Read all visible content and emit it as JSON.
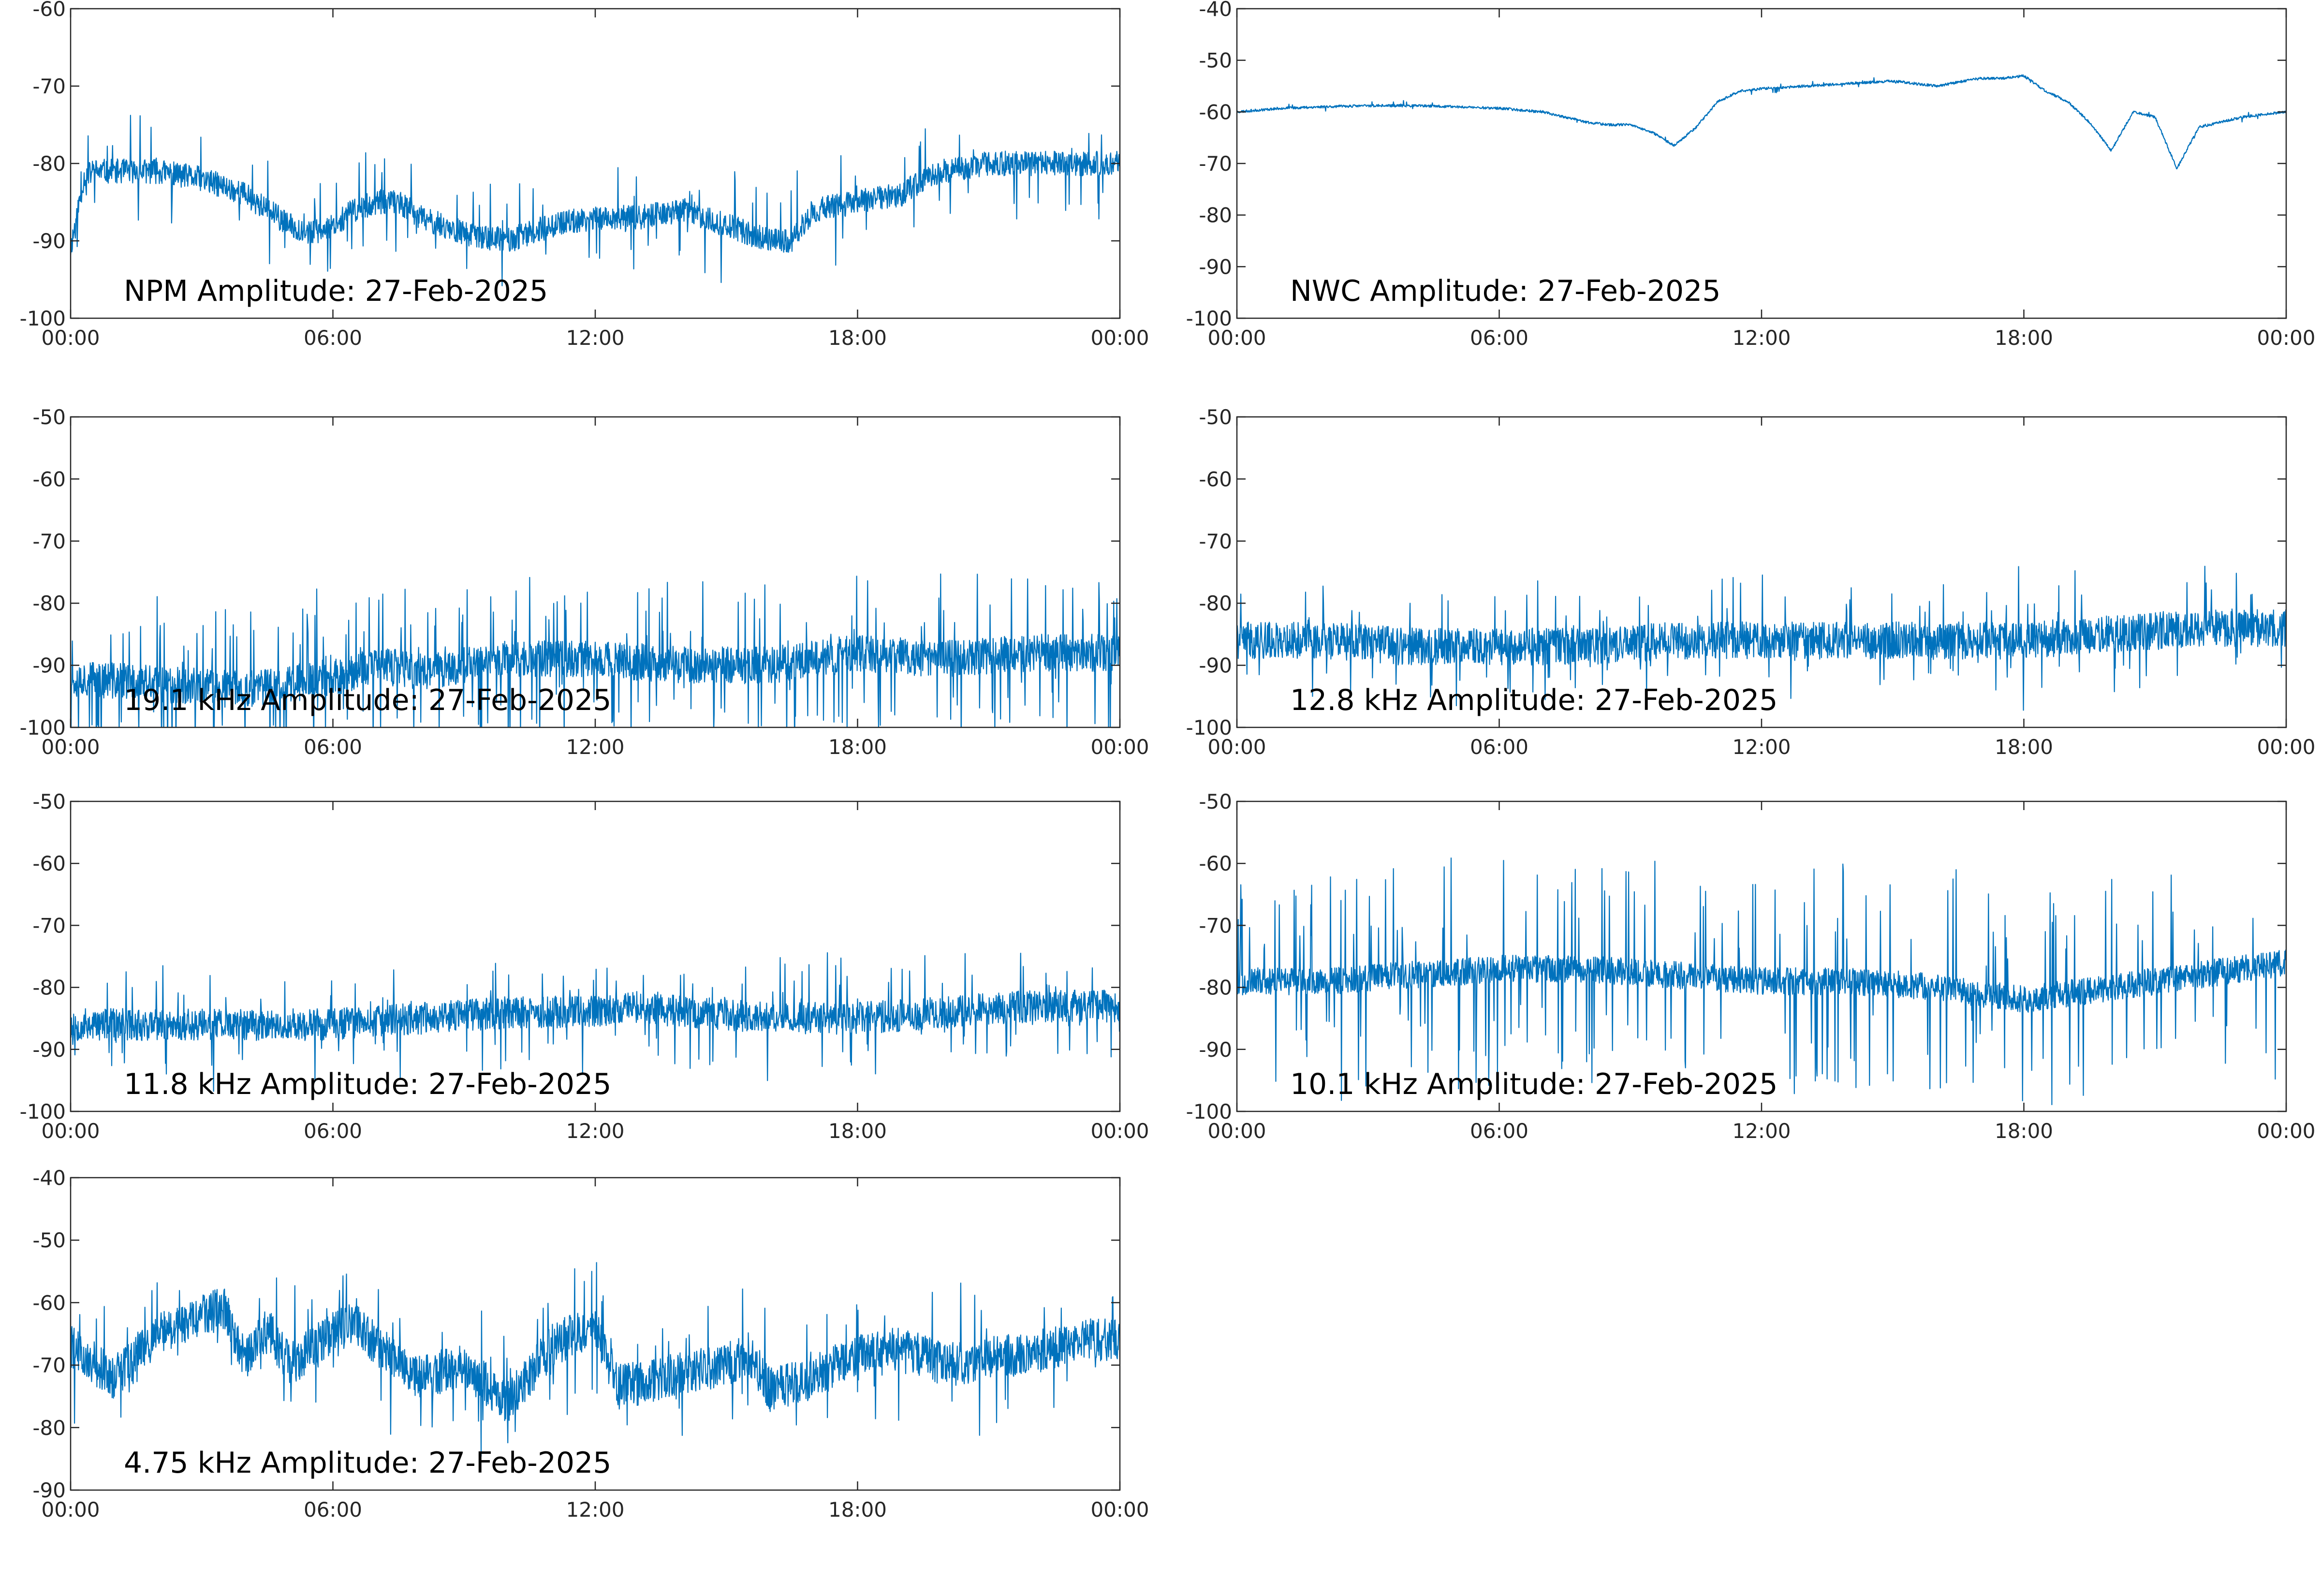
{
  "colors": {
    "series": "#0072bd",
    "axes": "#262626",
    "background": "#ffffff"
  },
  "chart_data": [
    {
      "type": "line",
      "title": "NPM Amplitude: 27-Feb-2025",
      "xlabel": "",
      "ylabel": "",
      "xlim": [
        0,
        24
      ],
      "ylim": [
        -100,
        -60
      ],
      "xtick_labels": [
        "00:00",
        "06:00",
        "12:00",
        "18:00",
        "00:00"
      ],
      "ytick_labels": [
        "-100",
        "-90",
        "-80",
        "-70",
        "-60"
      ],
      "grid": false,
      "series": [
        {
          "x": [
            0,
            0.3,
            0.5,
            1,
            2,
            3,
            4,
            5,
            5.5,
            6,
            6.5,
            7,
            7.5,
            8,
            9,
            10,
            11,
            12,
            13,
            14,
            15,
            16,
            16.5,
            17,
            18,
            19,
            19.5,
            20,
            21,
            22,
            23,
            24
          ],
          "y": [
            -91,
            -82,
            -81,
            -81,
            -81,
            -82,
            -84,
            -88,
            -89,
            -88,
            -86,
            -85,
            -85,
            -87,
            -89,
            -90,
            -88,
            -87,
            -87,
            -86,
            -88,
            -90,
            -90,
            -86,
            -85,
            -84,
            -82,
            -81,
            -80,
            -80,
            -80,
            -80
          ]
        }
      ]
    },
    {
      "type": "line",
      "title": "NWC Amplitude: 27-Feb-2025",
      "xlabel": "",
      "ylabel": "",
      "xlim": [
        0,
        24
      ],
      "ylim": [
        -100,
        -40
      ],
      "xtick_labels": [
        "00:00",
        "06:00",
        "12:00",
        "18:00",
        "00:00"
      ],
      "ytick_labels": [
        "-100",
        "-90",
        "-80",
        "-70",
        "-60",
        "-50",
        "-40"
      ],
      "grid": false,
      "series": [
        {
          "x": [
            0,
            1,
            2,
            3,
            4,
            5,
            6,
            7,
            8,
            8.5,
            9,
            9.5,
            10,
            10.5,
            11,
            11.5,
            12,
            13,
            14,
            15,
            16,
            17,
            17.5,
            18,
            18.5,
            19,
            19.5,
            20,
            20.5,
            21,
            21.5,
            22,
            22.5,
            23,
            24
          ],
          "y": [
            -60,
            -59.3,
            -59,
            -58.8,
            -58.8,
            -59,
            -59.3,
            -60,
            -62,
            -62.5,
            -62.5,
            -64,
            -66.5,
            -63,
            -58,
            -56,
            -55.5,
            -55,
            -54.5,
            -54,
            -55,
            -53.5,
            -53.5,
            -53,
            -56,
            -58,
            -62,
            -67.5,
            -60,
            -61,
            -71,
            -63,
            -62,
            -61,
            -60
          ]
        }
      ]
    },
    {
      "type": "line",
      "title": "19.1 kHz Amplitude: 27-Feb-2025",
      "xlabel": "",
      "ylabel": "",
      "xlim": [
        0,
        24
      ],
      "ylim": [
        -100,
        -50
      ],
      "xtick_labels": [
        "00:00",
        "06:00",
        "12:00",
        "18:00",
        "00:00"
      ],
      "ytick_labels": [
        "-100",
        "-90",
        "-80",
        "-70",
        "-60",
        "-50"
      ],
      "grid": false,
      "series": [
        {
          "x": [
            0,
            2,
            4,
            6,
            7,
            8,
            9,
            10,
            12,
            14,
            16,
            18,
            20,
            22,
            24
          ],
          "y": [
            -92,
            -93,
            -94,
            -92,
            -90,
            -91,
            -90,
            -89,
            -89,
            -90,
            -90,
            -88,
            -89,
            -88,
            -88
          ]
        }
      ]
    },
    {
      "type": "line",
      "title": "12.8 kHz Amplitude: 27-Feb-2025",
      "xlabel": "",
      "ylabel": "",
      "xlim": [
        0,
        24
      ],
      "ylim": [
        -100,
        -50
      ],
      "xtick_labels": [
        "00:00",
        "06:00",
        "12:00",
        "18:00",
        "00:00"
      ],
      "ytick_labels": [
        "-100",
        "-90",
        "-80",
        "-70",
        "-60",
        "-50"
      ],
      "grid": false,
      "series": [
        {
          "x": [
            0,
            2,
            4,
            6,
            8,
            10,
            12,
            14,
            16,
            18,
            20,
            22,
            24
          ],
          "y": [
            -86,
            -86,
            -87,
            -87,
            -87,
            -86,
            -86,
            -86,
            -86,
            -86,
            -85,
            -84,
            -84
          ]
        }
      ]
    },
    {
      "type": "line",
      "title": "11.8 kHz Amplitude: 27-Feb-2025",
      "xlabel": "",
      "ylabel": "",
      "xlim": [
        0,
        24
      ],
      "ylim": [
        -100,
        -50
      ],
      "xtick_labels": [
        "00:00",
        "06:00",
        "12:00",
        "18:00",
        "00:00"
      ],
      "ytick_labels": [
        "-100",
        "-90",
        "-80",
        "-70",
        "-60",
        "-50"
      ],
      "grid": false,
      "series": [
        {
          "x": [
            0,
            2,
            4,
            6,
            8,
            10,
            12,
            13,
            14,
            16,
            18,
            20,
            22,
            24
          ],
          "y": [
            -86,
            -86,
            -86,
            -86,
            -85,
            -84,
            -84,
            -83,
            -84,
            -85,
            -85,
            -84,
            -83,
            -83
          ]
        }
      ]
    },
    {
      "type": "line",
      "title": "10.1 kHz Amplitude: 27-Feb-2025",
      "xlabel": "",
      "ylabel": "",
      "xlim": [
        0,
        24
      ],
      "ylim": [
        -100,
        -50
      ],
      "xtick_labels": [
        "00:00",
        "06:00",
        "12:00",
        "18:00",
        "00:00"
      ],
      "ytick_labels": [
        "-100",
        "-90",
        "-80",
        "-70",
        "-60",
        "-50"
      ],
      "grid": false,
      "series": [
        {
          "x": [
            0,
            2,
            4,
            6,
            8,
            10,
            12,
            14,
            16,
            17,
            18,
            19,
            20,
            21,
            22,
            23,
            24
          ],
          "y": [
            -79,
            -79,
            -78,
            -77,
            -77,
            -78,
            -79,
            -79,
            -80,
            -81,
            -82,
            -81,
            -80,
            -79,
            -78,
            -77,
            -76
          ]
        }
      ]
    },
    {
      "type": "line",
      "title": "4.75 kHz Amplitude: 27-Feb-2025",
      "xlabel": "",
      "ylabel": "",
      "xlim": [
        0,
        24
      ],
      "ylim": [
        -90,
        -40
      ],
      "xtick_labels": [
        "00:00",
        "06:00",
        "12:00",
        "18:00",
        "00:00"
      ],
      "ytick_labels": [
        "-90",
        "-80",
        "-70",
        "-60",
        "-50",
        "-40"
      ],
      "grid": false,
      "series": [
        {
          "x": [
            0,
            1,
            2,
            3,
            3.5,
            4,
            4.5,
            5,
            6,
            6.5,
            7,
            8,
            9,
            10,
            11,
            11.5,
            12,
            12.5,
            13,
            14,
            15,
            15.5,
            16,
            17,
            18,
            19,
            20,
            21,
            22,
            23,
            24
          ],
          "y": [
            -67,
            -72,
            -65,
            -62,
            -61,
            -69,
            -64,
            -70,
            -65,
            -63,
            -67,
            -72,
            -70,
            -76,
            -67,
            -65,
            -64,
            -73,
            -73,
            -71,
            -70,
            -68,
            -74,
            -72,
            -68,
            -67,
            -70,
            -69,
            -68,
            -66,
            -66
          ]
        }
      ]
    }
  ]
}
